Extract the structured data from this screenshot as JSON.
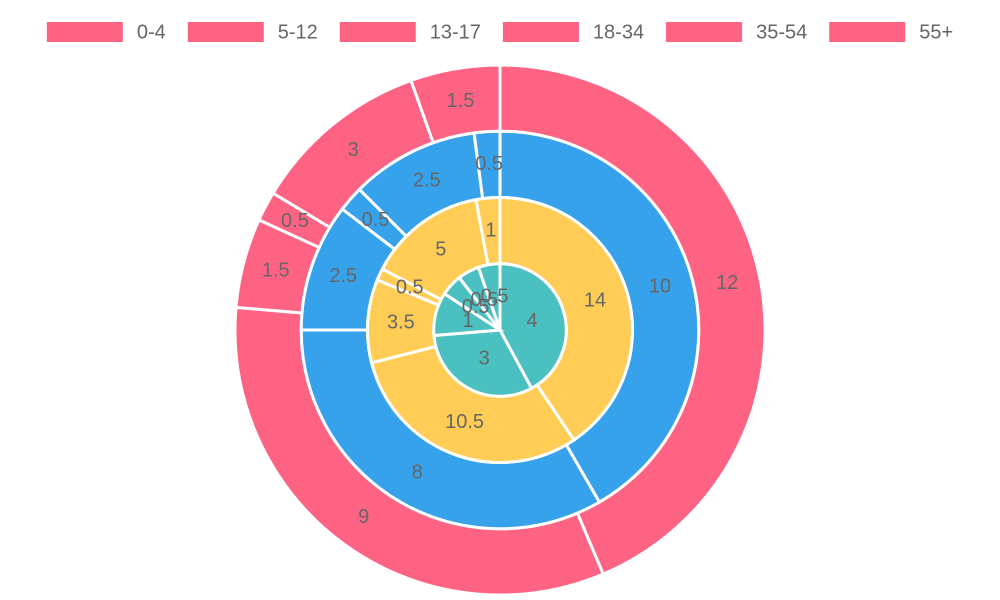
{
  "chart_data": {
    "type": "doughnut",
    "categories": [
      "0-4",
      "5-12",
      "13-17",
      "18-34",
      "35-54",
      "55+"
    ],
    "series": [
      {
        "color": "#ff6384",
        "values": [
          12,
          9,
          1.5,
          0.5,
          3,
          1.5
        ]
      },
      {
        "color": "#36a2eb",
        "values": [
          10,
          8,
          2.5,
          0.5,
          2.5,
          0.5
        ]
      },
      {
        "color": "#ffcd56",
        "values": [
          14,
          10.5,
          3.5,
          0.5,
          5,
          1
        ]
      },
      {
        "color": "#4bc0c0",
        "values": [
          4,
          3,
          1,
          0.5,
          0.5,
          0.5
        ]
      }
    ]
  }
}
